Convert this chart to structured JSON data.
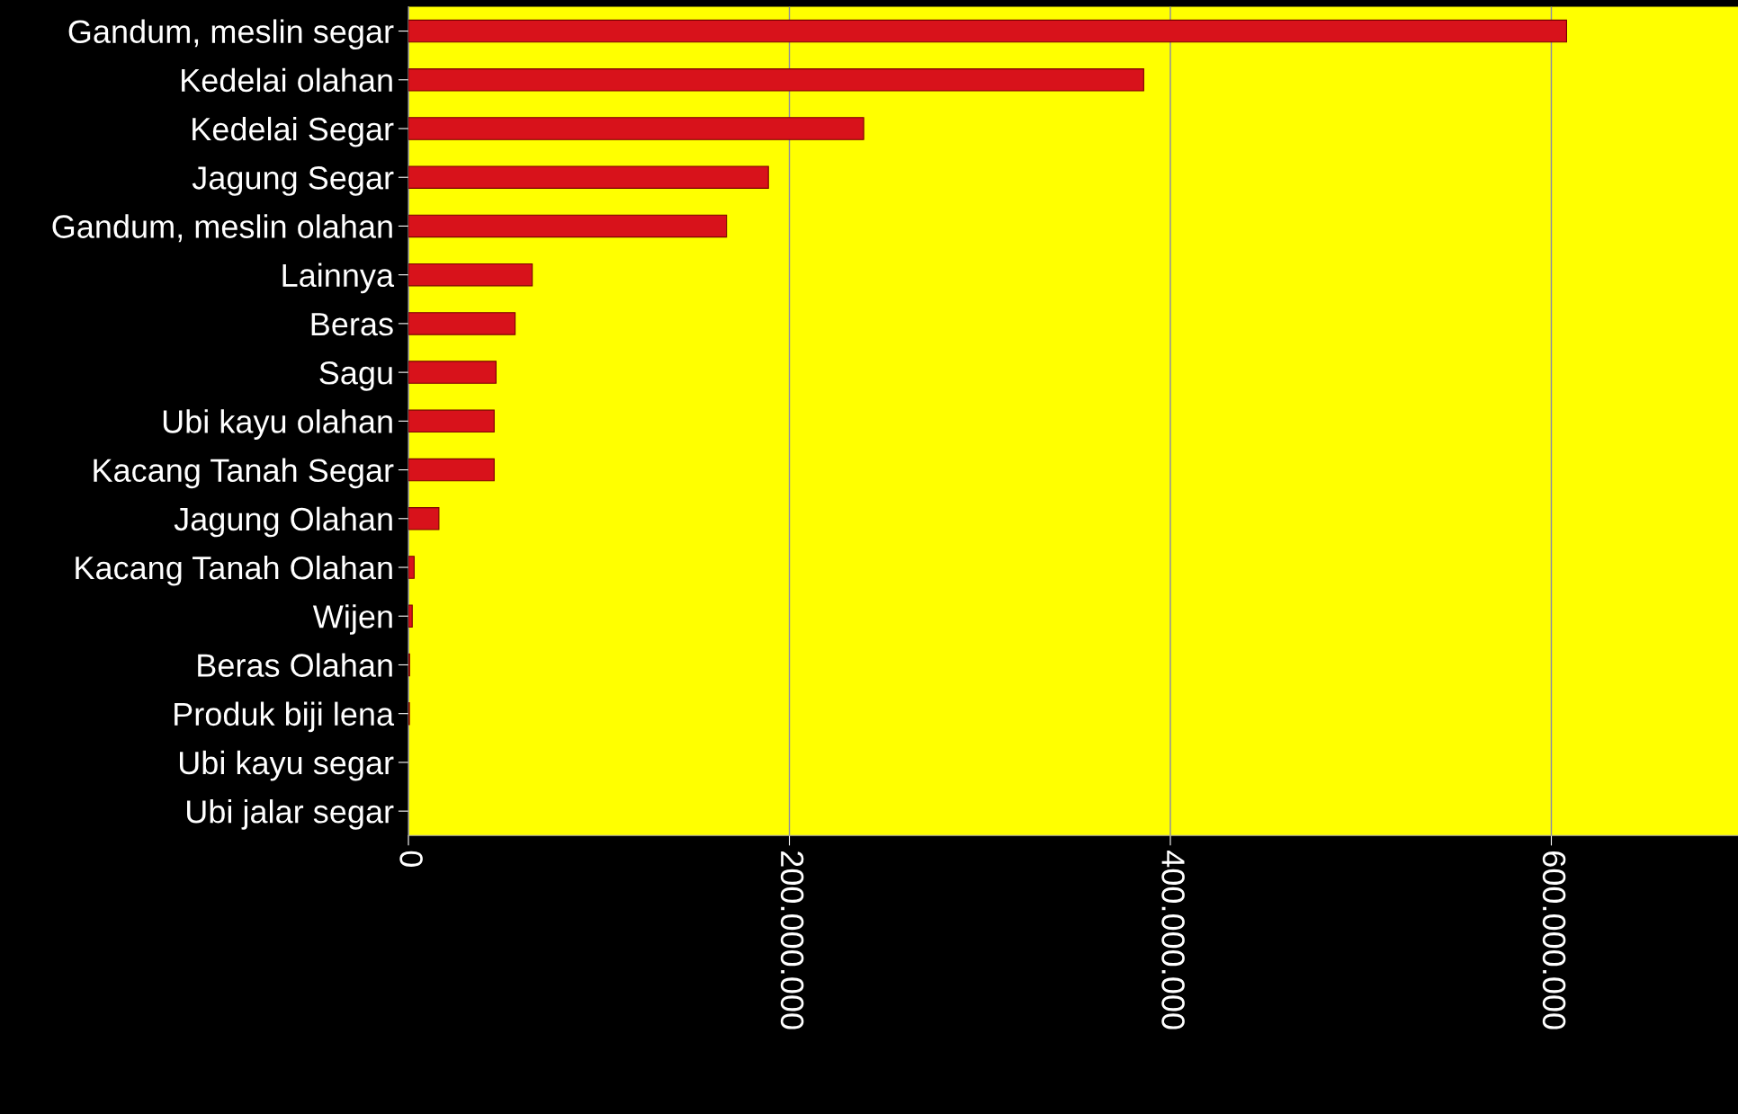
{
  "chart_data": {
    "type": "bar",
    "orientation": "horizontal",
    "categories": [
      "Gandum, meslin segar",
      "Kedelai olahan",
      "Kedelai Segar",
      "Jagung Segar",
      "Gandum, meslin olahan",
      "Lainnya",
      "Beras",
      "Sagu",
      "Ubi kayu olahan",
      "Kacang Tanah Segar",
      "Jagung Olahan",
      "Kacang Tanah Olahan",
      "Wijen",
      "Beras Olahan",
      "Produk biji lena",
      "Ubi kayu segar",
      "Ubi jalar segar"
    ],
    "values": [
      608000000,
      386000000,
      239000000,
      189000000,
      167000000,
      65000000,
      56000000,
      46000000,
      45000000,
      45000000,
      16000000,
      3000000,
      2000000,
      600000,
      500000,
      null,
      null
    ],
    "color": "#d8121b",
    "xlim": [
      0,
      698000000
    ],
    "xticks": [
      {
        "value": 0,
        "label": "0"
      },
      {
        "value": 200000000,
        "label": "200.000.000"
      },
      {
        "value": 400000000,
        "label": "400.000.000"
      },
      {
        "value": 600000000,
        "label": "600.000.000"
      }
    ],
    "grid": "x"
  }
}
